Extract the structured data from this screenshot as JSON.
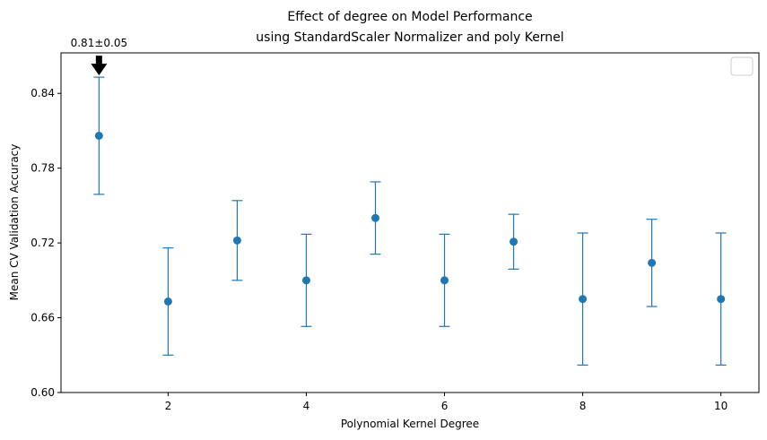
{
  "chart_data": {
    "type": "scatter",
    "title": "Effect of degree on Model Performance",
    "subtitle": "using StandardScaler Normalizer and poly Kernel",
    "xlabel": "Polynomial Kernel Degree",
    "ylabel": "Mean CV Validation Accuracy",
    "xlim": [
      0.45,
      10.55
    ],
    "ylim": [
      0.6,
      0.8725
    ],
    "xticks": [
      2,
      4,
      6,
      8,
      10
    ],
    "yticks": [
      0.6,
      0.66,
      0.72,
      0.78,
      0.84
    ],
    "ytick_labels": [
      "0.60",
      "0.66",
      "0.72",
      "0.78",
      "0.84"
    ],
    "grid": false,
    "legend": "top-right",
    "series": [
      {
        "color": "#1f77b4",
        "points": [
          {
            "x": 1,
            "y": 0.806,
            "err": 0.047
          },
          {
            "x": 2,
            "y": 0.673,
            "err": 0.043
          },
          {
            "x": 3,
            "y": 0.722,
            "err": 0.032
          },
          {
            "x": 4,
            "y": 0.69,
            "err": 0.037
          },
          {
            "x": 5,
            "y": 0.74,
            "err": 0.029
          },
          {
            "x": 6,
            "y": 0.69,
            "err": 0.037
          },
          {
            "x": 7,
            "y": 0.721,
            "err": 0.022
          },
          {
            "x": 8,
            "y": 0.675,
            "err": 0.053
          },
          {
            "x": 9,
            "y": 0.704,
            "err": 0.035
          },
          {
            "x": 10,
            "y": 0.675,
            "err": 0.053
          }
        ]
      }
    ],
    "annotation": {
      "text": "0.81±0.05",
      "x": 1,
      "y": 0.853
    }
  }
}
